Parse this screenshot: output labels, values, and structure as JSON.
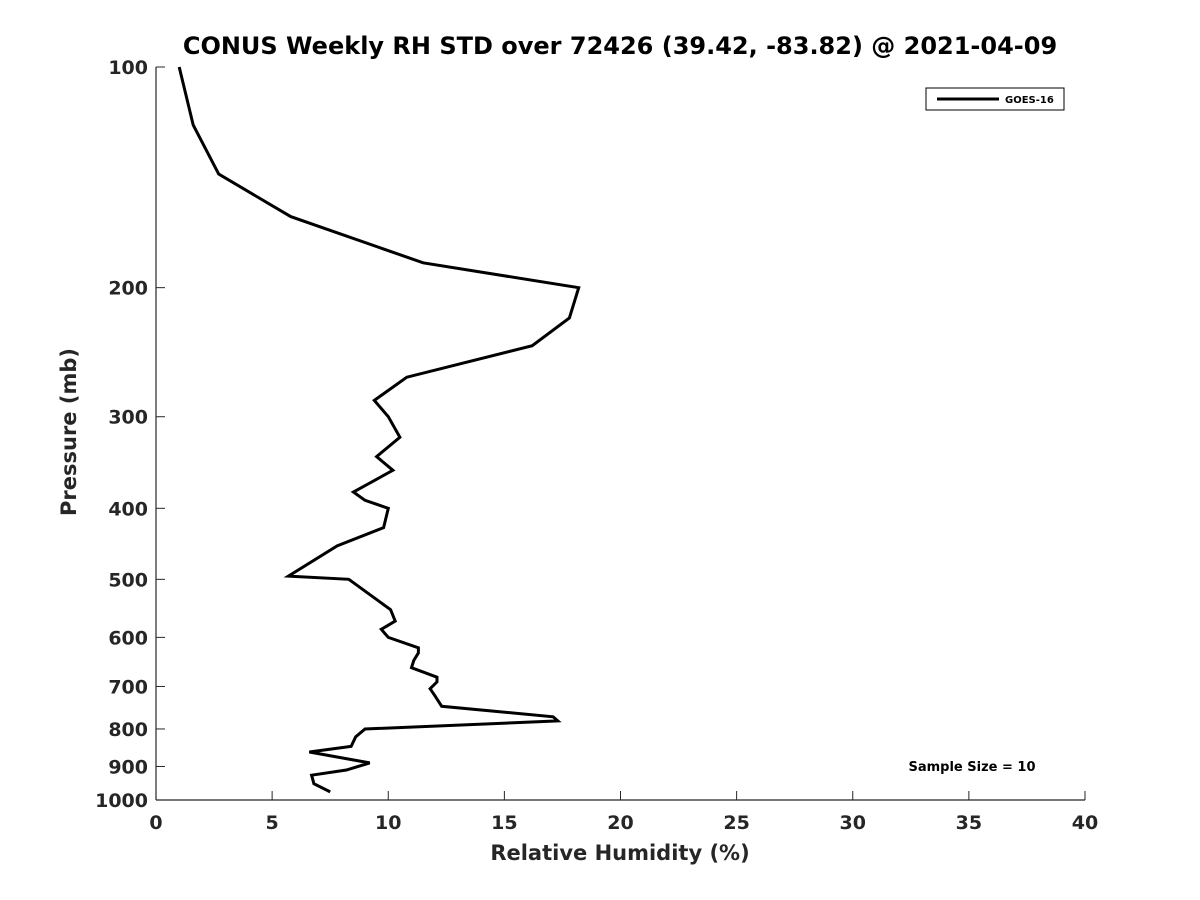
{
  "chart_data": {
    "type": "line",
    "title": "CONUS Weekly RH STD over 72426 (39.42, -83.82) @ 2021-04-09",
    "xlabel": "Relative Humidity (%)",
    "ylabel": "Pressure (mb)",
    "xlim": [
      0,
      40
    ],
    "ylim": [
      100,
      1000
    ],
    "y_scale": "log",
    "y_reversed": true,
    "x_ticks": [
      0,
      5,
      10,
      15,
      20,
      25,
      30,
      35,
      40
    ],
    "y_ticks": [
      100,
      200,
      300,
      400,
      500,
      600,
      700,
      800,
      900,
      1000
    ],
    "grid": false,
    "legend_position": "top-right",
    "series": [
      {
        "name": "GOES-16",
        "color": "#000000",
        "x": [
          7.5,
          6.8,
          6.7,
          8.2,
          9.2,
          6.6,
          8.4,
          8.6,
          9.0,
          17.3,
          17.1,
          12.3,
          12.0,
          11.8,
          12.1,
          12.1,
          11.0,
          11.1,
          11.3,
          11.3,
          10.0,
          9.7,
          10.3,
          10.1,
          8.3,
          5.7,
          7.8,
          9.8,
          10.0,
          9.0,
          8.5,
          10.2,
          9.5,
          10.5,
          10.0,
          9.4,
          10.8,
          16.2,
          17.8,
          18.2,
          11.5,
          5.8,
          2.7,
          1.6,
          1.0
        ],
        "y": [
          975,
          950,
          925,
          910,
          890,
          860,
          845,
          820,
          800,
          780,
          770,
          745,
          720,
          705,
          690,
          680,
          660,
          645,
          630,
          620,
          600,
          585,
          570,
          550,
          500,
          495,
          450,
          425,
          400,
          390,
          380,
          355,
          340,
          320,
          300,
          285,
          265,
          240,
          220,
          200,
          185,
          160,
          140,
          120,
          100
        ]
      }
    ],
    "annotation": "Sample Size = 10"
  }
}
